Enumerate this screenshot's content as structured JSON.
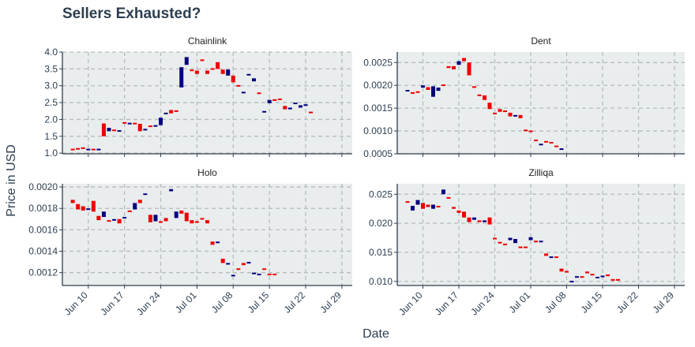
{
  "chart_data": {
    "type": "candlestick",
    "title": "Sellers Exhausted?",
    "xlabel": "Date",
    "ylabel": "Price in USD",
    "colors": {
      "up": "#000080",
      "down": "#ee0000",
      "panel_bg": "#eaeded",
      "grid": "#b6bcbe",
      "axis": "#2c3e50"
    },
    "grid": true,
    "x_ticks": [
      {
        "label": "Jun 10",
        "day": 10
      },
      {
        "label": "Jun 17",
        "day": 17
      },
      {
        "label": "Jun 24",
        "day": 24
      },
      {
        "label": "Jul 01",
        "day": 31
      },
      {
        "label": "Jul 08",
        "day": 38
      },
      {
        "label": "Jul 15",
        "day": 45
      },
      {
        "label": "Jul 22",
        "day": 52
      },
      {
        "label": "Jul 29",
        "day": 59
      }
    ],
    "xlim_days": [
      5,
      61
    ],
    "panels": [
      {
        "name": "Chainlink",
        "ylim": [
          0.98,
          4.0
        ],
        "y_ticks": [
          "1.0",
          "1.5",
          "2.0",
          "2.5",
          "3.0",
          "3.5",
          "4.0"
        ],
        "candles": [
          {
            "date": "Jun 07",
            "open": 1.13,
            "close": 1.12
          },
          {
            "date": "Jun 08",
            "open": 1.15,
            "close": 1.13
          },
          {
            "date": "Jun 09",
            "open": 1.17,
            "close": 1.14
          },
          {
            "date": "Jun 10",
            "open": 1.12,
            "close": 1.13
          },
          {
            "date": "Jun 11",
            "open": 1.13,
            "close": 1.12
          },
          {
            "date": "Jun 12",
            "open": 1.12,
            "close": 1.13
          },
          {
            "date": "Jun 13",
            "open": 1.88,
            "close": 1.5
          },
          {
            "date": "Jun 14",
            "open": 1.65,
            "close": 1.75
          },
          {
            "date": "Jun 15",
            "open": 1.7,
            "close": 1.68
          },
          {
            "date": "Jun 16",
            "open": 1.68,
            "close": 1.68
          },
          {
            "date": "Jun 17",
            "open": 1.92,
            "close": 1.9
          },
          {
            "date": "Jun 18",
            "open": 1.9,
            "close": 1.9
          },
          {
            "date": "Jun 19",
            "open": 1.9,
            "close": 1.88
          },
          {
            "date": "Jun 20",
            "open": 1.87,
            "close": 1.65
          },
          {
            "date": "Jun 21",
            "open": 1.72,
            "close": 1.72
          },
          {
            "date": "Jun 22",
            "open": 1.82,
            "close": 1.8
          },
          {
            "date": "Jun 23",
            "open": 1.82,
            "close": 1.83
          },
          {
            "date": "Jun 24",
            "open": 1.83,
            "close": 2.05
          },
          {
            "date": "Jun 25",
            "open": 2.2,
            "close": 2.2
          },
          {
            "date": "Jun 26",
            "open": 2.28,
            "close": 2.18
          },
          {
            "date": "Jun 27",
            "open": 2.27,
            "close": 2.25
          },
          {
            "date": "Jun 28",
            "open": 2.95,
            "close": 3.55
          },
          {
            "date": "Jun 29",
            "open": 3.62,
            "close": 3.85
          },
          {
            "date": "Jun 30",
            "open": 3.48,
            "close": 3.45
          },
          {
            "date": "Jul 01",
            "open": 3.45,
            "close": 3.35
          },
          {
            "date": "Jul 02",
            "open": 3.78,
            "close": 3.75
          },
          {
            "date": "Jul 03",
            "open": 3.45,
            "close": 3.35
          },
          {
            "date": "Jul 04",
            "open": 3.52,
            "close": 3.5
          },
          {
            "date": "Jul 05",
            "open": 3.7,
            "close": 3.5
          },
          {
            "date": "Jul 06",
            "open": 3.48,
            "close": 3.35
          },
          {
            "date": "Jul 07",
            "open": 3.3,
            "close": 3.48
          },
          {
            "date": "Jul 08",
            "open": 3.3,
            "close": 3.1
          },
          {
            "date": "Jul 09",
            "open": 3.02,
            "close": 3.0
          },
          {
            "date": "Jul 10",
            "open": 2.82,
            "close": 2.82
          },
          {
            "date": "Jul 11",
            "open": 3.35,
            "close": 3.35
          },
          {
            "date": "Jul 12",
            "open": 3.13,
            "close": 3.22
          },
          {
            "date": "Jul 13",
            "open": 2.8,
            "close": 2.78
          },
          {
            "date": "Jul 14",
            "open": 2.23,
            "close": 2.25
          },
          {
            "date": "Jul 15",
            "open": 2.48,
            "close": 2.58
          },
          {
            "date": "Jul 16",
            "open": 2.6,
            "close": 2.55
          },
          {
            "date": "Jul 17",
            "open": 2.62,
            "close": 2.6
          },
          {
            "date": "Jul 18",
            "open": 2.4,
            "close": 2.3
          },
          {
            "date": "Jul 19",
            "open": 2.3,
            "close": 2.35
          },
          {
            "date": "Jul 20",
            "open": 2.48,
            "close": 2.5
          },
          {
            "date": "Jul 21",
            "open": 2.35,
            "close": 2.42
          },
          {
            "date": "Jul 22",
            "open": 2.4,
            "close": 2.45
          },
          {
            "date": "Jul 23",
            "open": 2.23,
            "close": 2.22
          }
        ]
      },
      {
        "name": "Dent",
        "ylim": [
          0.0005,
          0.00273
        ],
        "y_ticks": [
          "0.0005",
          "0.0010",
          "0.0015",
          "0.0020",
          "0.0025"
        ],
        "candles": [
          {
            "date": "Jun 07",
            "open": 0.00188,
            "close": 0.0019
          },
          {
            "date": "Jun 08",
            "open": 0.00185,
            "close": 0.00183
          },
          {
            "date": "Jun 09",
            "open": 0.00187,
            "close": 0.00186
          },
          {
            "date": "Jun 10",
            "open": 0.00195,
            "close": 0.002
          },
          {
            "date": "Jun 11",
            "open": 0.00196,
            "close": 0.0019
          },
          {
            "date": "Jun 12",
            "open": 0.00175,
            "close": 0.00198
          },
          {
            "date": "Jun 13",
            "open": 0.00188,
            "close": 0.00195
          },
          {
            "date": "Jun 14",
            "open": 0.00202,
            "close": 0.002
          },
          {
            "date": "Jun 15",
            "open": 0.00242,
            "close": 0.00238
          },
          {
            "date": "Jun 16",
            "open": 0.00242,
            "close": 0.00235
          },
          {
            "date": "Jun 17",
            "open": 0.00245,
            "close": 0.00253
          },
          {
            "date": "Jun 18",
            "open": 0.0026,
            "close": 0.00253
          },
          {
            "date": "Jun 19",
            "open": 0.0025,
            "close": 0.00222
          },
          {
            "date": "Jun 20",
            "open": 0.00198,
            "close": 0.00197
          },
          {
            "date": "Jun 21",
            "open": 0.0018,
            "close": 0.00178
          },
          {
            "date": "Jun 22",
            "open": 0.00178,
            "close": 0.00168
          },
          {
            "date": "Jun 23",
            "open": 0.00162,
            "close": 0.00148
          },
          {
            "date": "Jun 24",
            "open": 0.0014,
            "close": 0.00138
          },
          {
            "date": "Jun 25",
            "open": 0.00148,
            "close": 0.00142
          },
          {
            "date": "Jun 26",
            "open": 0.00145,
            "close": 0.00142
          },
          {
            "date": "Jun 27",
            "open": 0.0014,
            "close": 0.00132
          },
          {
            "date": "Jun 28",
            "open": 0.00135,
            "close": 0.00135
          },
          {
            "date": "Jun 29",
            "open": 0.00135,
            "close": 0.00128
          },
          {
            "date": "Jun 30",
            "open": 0.00103,
            "close": 0.00102
          },
          {
            "date": "Jul 01",
            "open": 0.00101,
            "close": 0.001
          },
          {
            "date": "Jul 02",
            "open": 0.00081,
            "close": 0.0008
          },
          {
            "date": "Jul 03",
            "open": 0.00071,
            "close": 0.00072
          },
          {
            "date": "Jul 04",
            "open": 0.00078,
            "close": 0.00077
          },
          {
            "date": "Jul 05",
            "open": 0.00076,
            "close": 0.00075
          },
          {
            "date": "Jul 06",
            "open": 0.00068,
            "close": 0.00067
          },
          {
            "date": "Jul 07",
            "open": 0.00061,
            "close": 0.00062
          }
        ]
      },
      {
        "name": "Holo",
        "ylim": [
          0.00108,
          0.00203
        ],
        "y_ticks": [
          "0.0012",
          "0.0014",
          "0.0016",
          "0.0018",
          "0.0020"
        ],
        "candles": [
          {
            "date": "Jun 07",
            "open": 0.00188,
            "close": 0.00185
          },
          {
            "date": "Jun 08",
            "open": 0.00184,
            "close": 0.00179
          },
          {
            "date": "Jun 09",
            "open": 0.00182,
            "close": 0.00178
          },
          {
            "date": "Jun 10",
            "open": 0.0018,
            "close": 0.0018
          },
          {
            "date": "Jun 11",
            "open": 0.00187,
            "close": 0.00177
          },
          {
            "date": "Jun 12",
            "open": 0.00173,
            "close": 0.00169
          },
          {
            "date": "Jun 13",
            "open": 0.00172,
            "close": 0.00177
          },
          {
            "date": "Jun 14",
            "open": 0.00169,
            "close": 0.00168
          },
          {
            "date": "Jun 15",
            "open": 0.0017,
            "close": 0.0017
          },
          {
            "date": "Jun 16",
            "open": 0.0017,
            "close": 0.00166
          },
          {
            "date": "Jun 17",
            "open": 0.00172,
            "close": 0.00172
          },
          {
            "date": "Jun 18",
            "open": 0.00178,
            "close": 0.00177
          },
          {
            "date": "Jun 19",
            "open": 0.00179,
            "close": 0.00185
          },
          {
            "date": "Jun 20",
            "open": 0.00188,
            "close": 0.00185
          },
          {
            "date": "Jun 21",
            "open": 0.00194,
            "close": 0.00194
          },
          {
            "date": "Jun 22",
            "open": 0.00174,
            "close": 0.00167
          },
          {
            "date": "Jun 23",
            "open": 0.00168,
            "close": 0.00174
          },
          {
            "date": "Jun 24",
            "open": 0.00168,
            "close": 0.00167
          },
          {
            "date": "Jun 25",
            "open": 0.00171,
            "close": 0.00168
          },
          {
            "date": "Jun 26",
            "open": 0.00196,
            "close": 0.00198
          },
          {
            "date": "Jun 27",
            "open": 0.00171,
            "close": 0.00177
          },
          {
            "date": "Jun 28",
            "open": 0.00178,
            "close": 0.00175
          },
          {
            "date": "Jun 29",
            "open": 0.00176,
            "close": 0.00168
          },
          {
            "date": "Jun 30",
            "open": 0.00169,
            "close": 0.00166
          },
          {
            "date": "Jul 01",
            "open": 0.00168,
            "close": 0.00167
          },
          {
            "date": "Jul 02",
            "open": 0.00171,
            "close": 0.0017
          },
          {
            "date": "Jul 03",
            "open": 0.00169,
            "close": 0.00166
          },
          {
            "date": "Jul 04",
            "open": 0.00149,
            "close": 0.00146
          },
          {
            "date": "Jul 05",
            "open": 0.00148,
            "close": 0.00149
          },
          {
            "date": "Jul 06",
            "open": 0.00133,
            "close": 0.00129
          },
          {
            "date": "Jul 07",
            "open": 0.00129,
            "close": 0.00129
          },
          {
            "date": "Jul 08",
            "open": 0.00117,
            "close": 0.00118
          },
          {
            "date": "Jul 09",
            "open": 0.00124,
            "close": 0.00123
          },
          {
            "date": "Jul 10",
            "open": 0.00129,
            "close": 0.00127
          },
          {
            "date": "Jul 11",
            "open": 0.0013,
            "close": 0.0013
          },
          {
            "date": "Jul 12",
            "open": 0.0012,
            "close": 0.0012
          },
          {
            "date": "Jul 13",
            "open": 0.00119,
            "close": 0.00119
          },
          {
            "date": "Jul 14",
            "open": 0.00124,
            "close": 0.00123
          },
          {
            "date": "Jul 15",
            "open": 0.00119,
            "close": 0.00118
          },
          {
            "date": "Jul 16",
            "open": 0.00119,
            "close": 0.00118
          }
        ]
      },
      {
        "name": "Zilliqa",
        "ylim": [
          0.0093,
          0.0268
        ],
        "y_ticks": [
          "0.010",
          "0.015",
          "0.020",
          "0.025"
        ],
        "candles": [
          {
            "date": "Jun 07",
            "open": 0.0238,
            "close": 0.0236
          },
          {
            "date": "Jun 08",
            "open": 0.0222,
            "close": 0.023
          },
          {
            "date": "Jun 09",
            "open": 0.0232,
            "close": 0.024
          },
          {
            "date": "Jun 10",
            "open": 0.0235,
            "close": 0.0225
          },
          {
            "date": "Jun 11",
            "open": 0.0232,
            "close": 0.0228
          },
          {
            "date": "Jun 12",
            "open": 0.0225,
            "close": 0.0232
          },
          {
            "date": "Jun 13",
            "open": 0.023,
            "close": 0.0228
          },
          {
            "date": "Jun 14",
            "open": 0.025,
            "close": 0.0258
          },
          {
            "date": "Jun 15",
            "open": 0.0245,
            "close": 0.0243
          },
          {
            "date": "Jun 16",
            "open": 0.0228,
            "close": 0.0225
          },
          {
            "date": "Jun 17",
            "open": 0.0222,
            "close": 0.0218
          },
          {
            "date": "Jun 18",
            "open": 0.022,
            "close": 0.021
          },
          {
            "date": "Jun 19",
            "open": 0.021,
            "close": 0.0202
          },
          {
            "date": "Jun 20",
            "open": 0.0206,
            "close": 0.021
          },
          {
            "date": "Jun 21",
            "open": 0.0205,
            "close": 0.0202
          },
          {
            "date": "Jun 22",
            "open": 0.0202,
            "close": 0.0205
          },
          {
            "date": "Jun 23",
            "open": 0.021,
            "close": 0.0198
          },
          {
            "date": "Jun 24",
            "open": 0.0175,
            "close": 0.0174
          },
          {
            "date": "Jun 25",
            "open": 0.0168,
            "close": 0.0166
          },
          {
            "date": "Jun 26",
            "open": 0.0165,
            "close": 0.0163
          },
          {
            "date": "Jun 27",
            "open": 0.0171,
            "close": 0.0175
          },
          {
            "date": "Jun 28",
            "open": 0.0166,
            "close": 0.0173
          },
          {
            "date": "Jun 29",
            "open": 0.016,
            "close": 0.0159
          },
          {
            "date": "Jun 30",
            "open": 0.016,
            "close": 0.0159
          },
          {
            "date": "Jul 01",
            "open": 0.0171,
            "close": 0.0176
          },
          {
            "date": "Jul 02",
            "open": 0.017,
            "close": 0.0169
          },
          {
            "date": "Jul 03",
            "open": 0.017,
            "close": 0.017
          },
          {
            "date": "Jul 04",
            "open": 0.0148,
            "close": 0.0144
          },
          {
            "date": "Jul 05",
            "open": 0.0141,
            "close": 0.0143
          },
          {
            "date": "Jul 06",
            "open": 0.0143,
            "close": 0.0142
          },
          {
            "date": "Jul 07",
            "open": 0.0122,
            "close": 0.0117
          },
          {
            "date": "Jul 08",
            "open": 0.0118,
            "close": 0.0117
          },
          {
            "date": "Jul 09",
            "open": 0.0101,
            "close": 0.0101
          },
          {
            "date": "Jul 10",
            "open": 0.0108,
            "close": 0.0109
          },
          {
            "date": "Jul 11",
            "open": 0.0109,
            "close": 0.0108
          },
          {
            "date": "Jul 12",
            "open": 0.0117,
            "close": 0.0114
          },
          {
            "date": "Jul 13",
            "open": 0.0113,
            "close": 0.0111
          },
          {
            "date": "Jul 14",
            "open": 0.0107,
            "close": 0.0108
          },
          {
            "date": "Jul 15",
            "open": 0.011,
            "close": 0.011
          },
          {
            "date": "Jul 16",
            "open": 0.0112,
            "close": 0.0109
          },
          {
            "date": "Jul 17",
            "open": 0.0104,
            "close": 0.0103
          },
          {
            "date": "Jul 18",
            "open": 0.0104,
            "close": 0.0103
          }
        ]
      }
    ]
  }
}
